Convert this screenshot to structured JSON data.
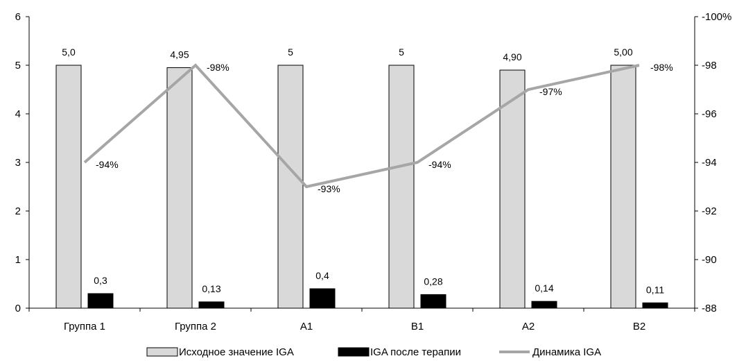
{
  "chart_data": {
    "type": "bar",
    "categories": [
      "Группа 1",
      "Группа 2",
      "A1",
      "B1",
      "A2",
      "B2"
    ],
    "series": [
      {
        "name": "Исходное значение IGA",
        "values": [
          5.0,
          4.95,
          5,
          5,
          4.9,
          5.0
        ],
        "labels": [
          "5,0",
          "4,95",
          "5",
          "5",
          "4,90",
          "5,00"
        ],
        "color": "#d9d9d9"
      },
      {
        "name": "IGA после терапии",
        "values": [
          0.3,
          0.13,
          0.4,
          0.28,
          0.14,
          0.11
        ],
        "labels": [
          "0,3",
          "0,13",
          "0,4",
          "0,28",
          "0,14",
          "0,11"
        ],
        "color": "#000000"
      },
      {
        "name": "Динамика IGA",
        "type": "line",
        "axis": "secondary",
        "values": [
          -94,
          -98,
          -93,
          -94,
          -97,
          -98
        ],
        "labels": [
          "-94%",
          "-98%",
          "-93%",
          "-94%",
          "-97%",
          "-98%"
        ],
        "color": "#a6a6a6"
      }
    ],
    "y_axis": {
      "min": 0,
      "max": 6,
      "ticks": [
        "0",
        "1",
        "2",
        "3",
        "4",
        "5",
        "6"
      ]
    },
    "y2_axis": {
      "min": -88,
      "max": -100,
      "reversed": true,
      "ticks": [
        "-88",
        "-90",
        "-92",
        "-94",
        "-96",
        "-98",
        "-100%"
      ],
      "tick_values": [
        -88,
        -90,
        -92,
        -94,
        -96,
        -98,
        -100
      ]
    },
    "legend_position": "bottom",
    "grid": false
  }
}
